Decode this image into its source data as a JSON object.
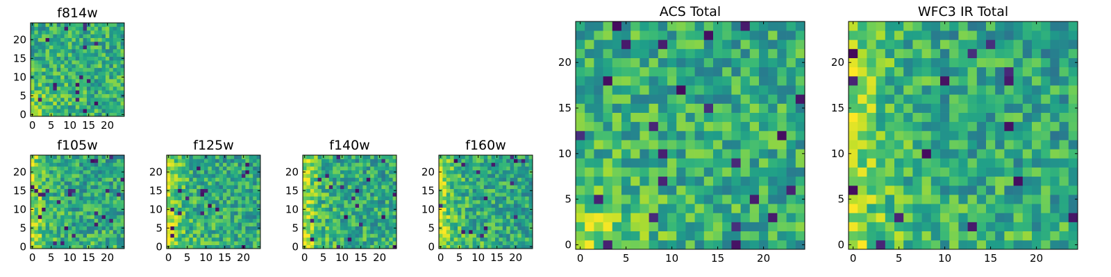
{
  "chart_data": [
    {
      "type": "heatmap",
      "title": "f814w",
      "grid": [
        25,
        25
      ],
      "xticks": [
        0,
        5,
        10,
        15,
        20
      ],
      "yticks": [
        0,
        5,
        10,
        15,
        20
      ],
      "xlim": [
        -0.5,
        24.5
      ],
      "ylim": [
        -0.5,
        24.5
      ],
      "colormap": "viridis",
      "seed": 11,
      "pattern": "bright-lower-left"
    },
    {
      "type": "heatmap",
      "title": "f105w",
      "grid": [
        25,
        25
      ],
      "xticks": [
        0,
        5,
        10,
        15,
        20
      ],
      "yticks": [
        0,
        5,
        10,
        15,
        20
      ],
      "xlim": [
        -0.5,
        24.5
      ],
      "ylim": [
        -0.5,
        24.5
      ],
      "colormap": "viridis",
      "seed": 23,
      "pattern": "bright-left"
    },
    {
      "type": "heatmap",
      "title": "f125w",
      "grid": [
        25,
        25
      ],
      "xticks": [
        0,
        5,
        10,
        15,
        20
      ],
      "yticks": [
        0,
        5,
        10,
        15,
        20
      ],
      "xlim": [
        -0.5,
        24.5
      ],
      "ylim": [
        -0.5,
        24.5
      ],
      "colormap": "viridis",
      "seed": 37,
      "pattern": "bright-left"
    },
    {
      "type": "heatmap",
      "title": "f140w",
      "grid": [
        25,
        25
      ],
      "xticks": [
        0,
        5,
        10,
        15,
        20
      ],
      "yticks": [
        0,
        5,
        10,
        15,
        20
      ],
      "xlim": [
        -0.5,
        24.5
      ],
      "ylim": [
        -0.5,
        24.5
      ],
      "colormap": "viridis",
      "seed": 41,
      "pattern": "bright-left"
    },
    {
      "type": "heatmap",
      "title": "f160w",
      "grid": [
        25,
        25
      ],
      "xticks": [
        0,
        5,
        10,
        15,
        20
      ],
      "yticks": [
        0,
        5,
        10,
        15,
        20
      ],
      "xlim": [
        -0.5,
        24.5
      ],
      "ylim": [
        -0.5,
        24.5
      ],
      "colormap": "viridis",
      "seed": 53,
      "pattern": "bright-left"
    },
    {
      "type": "heatmap",
      "title": "ACS Total",
      "grid": [
        25,
        25
      ],
      "xticks": [
        0,
        5,
        10,
        15,
        20
      ],
      "yticks": [
        0,
        5,
        10,
        15,
        20
      ],
      "xlim": [
        -0.5,
        24.5
      ],
      "ylim": [
        -0.5,
        24.5
      ],
      "colormap": "viridis",
      "seed": 67,
      "pattern": "bright-lower-left"
    },
    {
      "type": "heatmap",
      "title": "WFC3 IR Total",
      "grid": [
        25,
        25
      ],
      "xticks": [
        0,
        5,
        10,
        15,
        20
      ],
      "yticks": [
        0,
        5,
        10,
        15,
        20
      ],
      "xlim": [
        -0.5,
        24.5
      ],
      "ylim": [
        -0.5,
        24.5
      ],
      "colormap": "viridis",
      "seed": 79,
      "pattern": "bright-left"
    }
  ]
}
